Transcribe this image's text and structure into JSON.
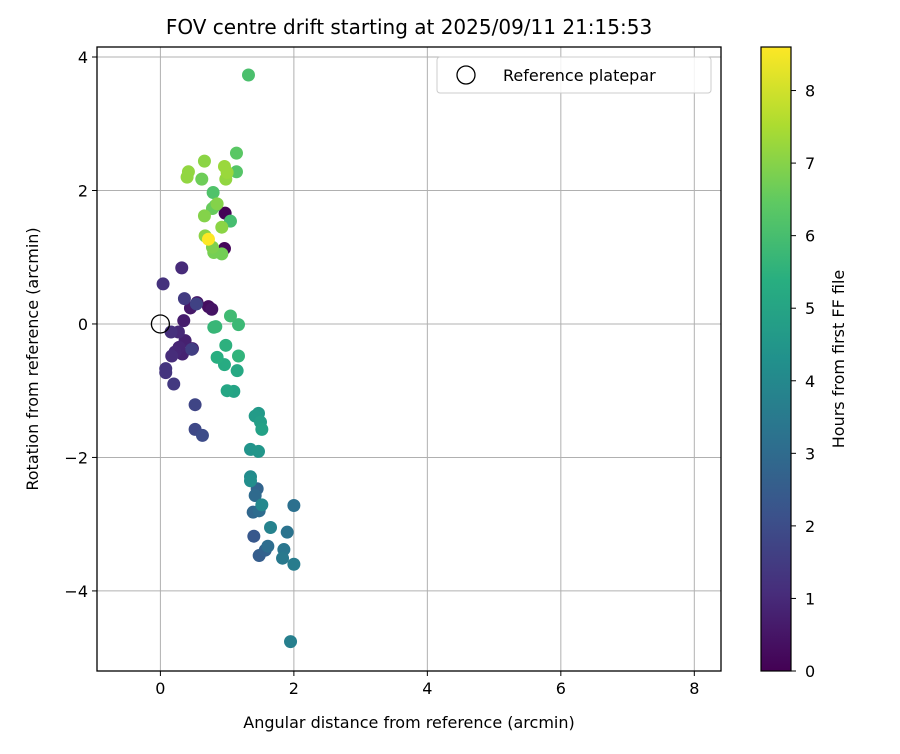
{
  "chart_data": {
    "type": "scatter",
    "title": "FOV centre drift starting at 2025/09/11 21:15:53",
    "xlabel": "Angular distance from reference (arcmin)",
    "ylabel": "Rotation from reference (arcmin)",
    "xlim": [
      -0.95,
      8.4
    ],
    "ylim": [
      -5.2,
      4.15
    ],
    "xticks": [
      0,
      2,
      4,
      6,
      8
    ],
    "yticks": [
      -4,
      -2,
      0,
      2,
      4
    ],
    "grid": true,
    "colormap": "viridis",
    "colorbar": {
      "label": "Hours from first FF file",
      "range": [
        0,
        8.6
      ],
      "ticks": [
        0,
        1,
        2,
        3,
        4,
        5,
        6,
        7,
        8
      ]
    },
    "legend": {
      "position": "top-right",
      "entries": [
        "Reference platepar"
      ]
    },
    "reference_point": {
      "x": 0,
      "y": 0,
      "label": "Reference platepar"
    },
    "points": [
      {
        "x": 0.97,
        "y": 1.66,
        "c": 0.05
      },
      {
        "x": 0.96,
        "y": 1.13,
        "c": 0.15
      },
      {
        "x": 0.72,
        "y": 0.26,
        "c": 0.3
      },
      {
        "x": 0.77,
        "y": 0.22,
        "c": 0.45
      },
      {
        "x": 0.55,
        "y": 0.32,
        "c": 0.5
      },
      {
        "x": 0.45,
        "y": 0.24,
        "c": 0.6
      },
      {
        "x": 0.35,
        "y": 0.05,
        "c": 0.7
      },
      {
        "x": 0.48,
        "y": -0.37,
        "c": 0.75
      },
      {
        "x": 0.37,
        "y": -0.25,
        "c": 0.8
      },
      {
        "x": 0.33,
        "y": -0.45,
        "c": 0.85
      },
      {
        "x": 0.28,
        "y": -0.35,
        "c": 0.9
      },
      {
        "x": 0.22,
        "y": -0.42,
        "c": 0.95
      },
      {
        "x": 0.27,
        "y": -0.12,
        "c": 1.0
      },
      {
        "x": 0.32,
        "y": 0.84,
        "c": 1.05
      },
      {
        "x": 0.17,
        "y": -0.48,
        "c": 1.1
      },
      {
        "x": 0.16,
        "y": -0.12,
        "c": 1.2
      },
      {
        "x": 0.04,
        "y": 0.6,
        "c": 1.25
      },
      {
        "x": 0.08,
        "y": -0.67,
        "c": 1.3
      },
      {
        "x": 0.08,
        "y": -0.73,
        "c": 1.35
      },
      {
        "x": 0.2,
        "y": -0.9,
        "c": 1.45
      },
      {
        "x": 0.36,
        "y": 0.38,
        "c": 1.5
      },
      {
        "x": 0.47,
        "y": -0.38,
        "c": 1.6
      },
      {
        "x": 0.54,
        "y": 0.3,
        "c": 1.7
      },
      {
        "x": 0.52,
        "y": -1.21,
        "c": 1.8
      },
      {
        "x": 0.52,
        "y": -1.58,
        "c": 1.9
      },
      {
        "x": 0.63,
        "y": -1.67,
        "c": 2.0
      },
      {
        "x": 1.4,
        "y": -3.18,
        "c": 2.4
      },
      {
        "x": 1.48,
        "y": -3.47,
        "c": 2.55
      },
      {
        "x": 1.57,
        "y": -3.39,
        "c": 2.7
      },
      {
        "x": 1.45,
        "y": -2.47,
        "c": 2.8
      },
      {
        "x": 1.39,
        "y": -2.82,
        "c": 2.9
      },
      {
        "x": 1.42,
        "y": -2.57,
        "c": 3.0
      },
      {
        "x": 1.48,
        "y": -2.8,
        "c": 3.05
      },
      {
        "x": 1.61,
        "y": -3.33,
        "c": 3.1
      },
      {
        "x": 2.0,
        "y": -2.72,
        "c": 3.2
      },
      {
        "x": 1.9,
        "y": -3.12,
        "c": 3.3
      },
      {
        "x": 1.85,
        "y": -3.38,
        "c": 3.4
      },
      {
        "x": 1.83,
        "y": -3.51,
        "c": 3.5
      },
      {
        "x": 2.0,
        "y": -3.6,
        "c": 3.6
      },
      {
        "x": 1.95,
        "y": -4.76,
        "c": 3.7
      },
      {
        "x": 1.65,
        "y": -3.05,
        "c": 3.8
      },
      {
        "x": 1.52,
        "y": -2.71,
        "c": 4.0
      },
      {
        "x": 1.35,
        "y": -2.29,
        "c": 4.1
      },
      {
        "x": 1.35,
        "y": -2.35,
        "c": 4.2
      },
      {
        "x": 1.35,
        "y": -1.88,
        "c": 4.4
      },
      {
        "x": 1.47,
        "y": -1.91,
        "c": 4.5
      },
      {
        "x": 1.47,
        "y": -1.34,
        "c": 4.6
      },
      {
        "x": 1.42,
        "y": -1.38,
        "c": 4.7
      },
      {
        "x": 1.5,
        "y": -1.47,
        "c": 4.8
      },
      {
        "x": 1.52,
        "y": -1.58,
        "c": 4.9
      },
      {
        "x": 1.1,
        "y": -1.01,
        "c": 5.0
      },
      {
        "x": 1.0,
        "y": -1.0,
        "c": 5.1
      },
      {
        "x": 1.15,
        "y": -0.7,
        "c": 5.2
      },
      {
        "x": 0.96,
        "y": -0.61,
        "c": 5.3
      },
      {
        "x": 0.85,
        "y": -0.5,
        "c": 5.4
      },
      {
        "x": 0.98,
        "y": -0.32,
        "c": 5.5
      },
      {
        "x": 1.17,
        "y": -0.48,
        "c": 5.6
      },
      {
        "x": 0.8,
        "y": -0.05,
        "c": 5.7
      },
      {
        "x": 0.83,
        "y": -0.04,
        "c": 5.75
      },
      {
        "x": 1.17,
        "y": -0.01,
        "c": 5.8
      },
      {
        "x": 1.05,
        "y": 0.12,
        "c": 5.9
      },
      {
        "x": 1.05,
        "y": 1.54,
        "c": 6.0
      },
      {
        "x": 1.32,
        "y": 3.73,
        "c": 6.1
      },
      {
        "x": 0.79,
        "y": 1.97,
        "c": 6.2
      },
      {
        "x": 1.14,
        "y": 2.28,
        "c": 6.3
      },
      {
        "x": 1.14,
        "y": 2.56,
        "c": 6.4
      },
      {
        "x": 0.82,
        "y": 1.77,
        "c": 6.5
      },
      {
        "x": 0.78,
        "y": 1.73,
        "c": 6.6
      },
      {
        "x": 0.62,
        "y": 2.17,
        "c": 6.7
      },
      {
        "x": 0.92,
        "y": 1.05,
        "c": 6.75
      },
      {
        "x": 0.8,
        "y": 1.07,
        "c": 6.8
      },
      {
        "x": 0.78,
        "y": 1.15,
        "c": 6.9
      },
      {
        "x": 0.66,
        "y": 1.62,
        "c": 7.0
      },
      {
        "x": 0.85,
        "y": 1.8,
        "c": 7.0
      },
      {
        "x": 0.92,
        "y": 1.45,
        "c": 7.1
      },
      {
        "x": 0.67,
        "y": 1.32,
        "c": 7.1
      },
      {
        "x": 0.66,
        "y": 2.44,
        "c": 7.1
      },
      {
        "x": 0.42,
        "y": 2.28,
        "c": 7.2
      },
      {
        "x": 0.4,
        "y": 2.2,
        "c": 7.2
      },
      {
        "x": 0.98,
        "y": 2.17,
        "c": 7.2
      },
      {
        "x": 0.96,
        "y": 2.36,
        "c": 7.3
      },
      {
        "x": 1.0,
        "y": 2.27,
        "c": 7.3
      },
      {
        "x": 0.72,
        "y": 1.27,
        "c": 8.6
      }
    ]
  }
}
